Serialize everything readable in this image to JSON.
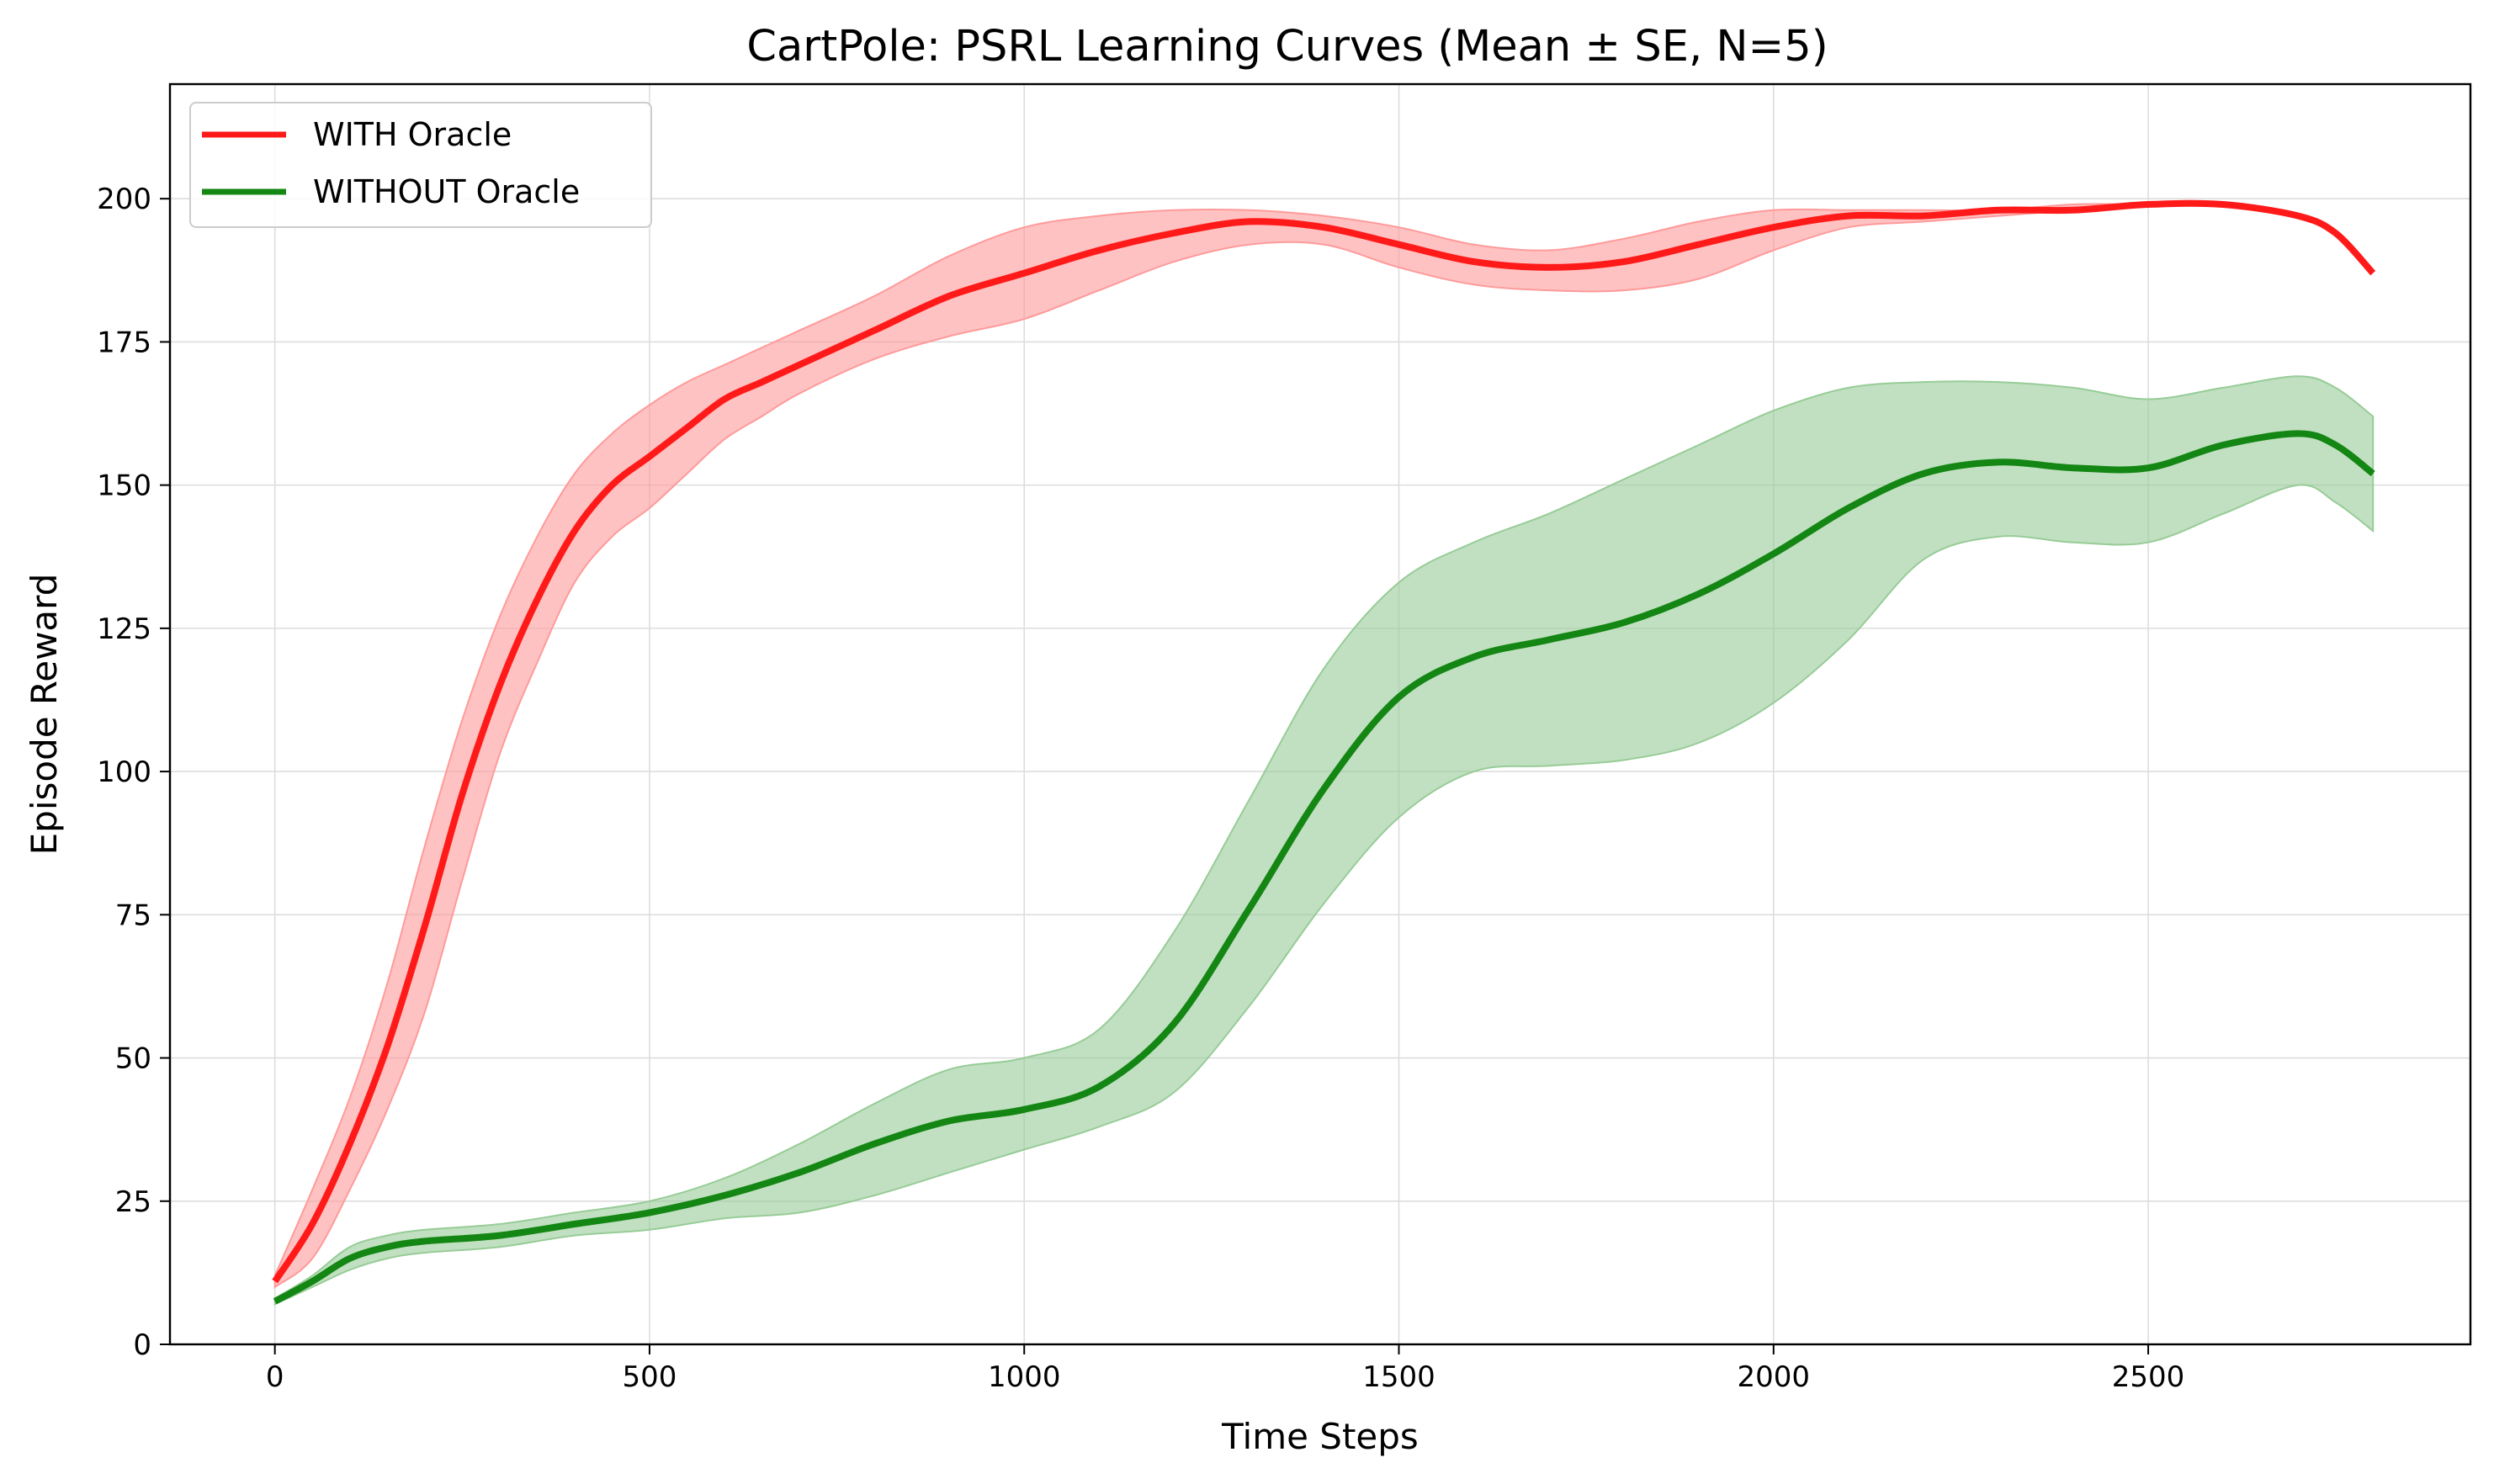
{
  "chart_data": {
    "type": "line",
    "title": "CartPole: PSRL Learning Curves (Mean ± SE, N=5)",
    "xlabel": "Time Steps",
    "ylabel": "Episode Reward",
    "xlim": [
      -140,
      2930
    ],
    "ylim": [
      0,
      220
    ],
    "xticks": [
      0,
      500,
      1000,
      1500,
      2000,
      2500
    ],
    "yticks": [
      0,
      25,
      50,
      75,
      100,
      125,
      150,
      175,
      200
    ],
    "grid": true,
    "legend_position": "top-left",
    "series": [
      {
        "name": "WITH Oracle",
        "color": "#ff1a1a",
        "band_color": "#ff9a9a",
        "x": [
          0,
          50,
          100,
          150,
          200,
          250,
          300,
          350,
          400,
          450,
          500,
          550,
          600,
          650,
          700,
          800,
          900,
          1000,
          1100,
          1200,
          1300,
          1400,
          1500,
          1600,
          1700,
          1800,
          1900,
          2000,
          2100,
          2200,
          2300,
          2400,
          2500,
          2600,
          2700,
          2750,
          2800
        ],
        "mean": [
          11,
          21,
          35,
          52,
          73,
          96,
          115,
          130,
          142,
          150,
          155,
          160,
          165,
          168,
          171,
          177,
          183,
          187,
          191,
          194,
          196,
          195,
          192,
          189,
          188,
          189,
          192,
          195,
          197,
          197,
          198,
          198,
          199,
          199,
          197,
          194,
          187
        ],
        "upper": [
          12,
          27,
          43,
          63,
          87,
          109,
          127,
          141,
          152,
          159,
          164,
          168,
          171,
          174,
          177,
          183,
          190,
          195,
          197,
          198,
          198,
          197,
          195,
          192,
          191,
          193,
          196,
          198,
          198,
          198,
          198,
          199,
          199,
          199,
          197,
          194,
          187
        ],
        "lower": [
          10,
          15,
          27,
          41,
          58,
          81,
          103,
          119,
          133,
          141,
          146,
          152,
          158,
          162,
          166,
          172,
          176,
          179,
          184,
          189,
          192,
          192,
          188,
          185,
          184,
          184,
          186,
          191,
          195,
          196,
          197,
          198,
          199,
          199,
          197,
          194,
          187
        ]
      },
      {
        "name": "WITHOUT Oracle",
        "color": "#138613",
        "band_color": "#97cc97",
        "x": [
          0,
          50,
          100,
          150,
          200,
          300,
          400,
          500,
          600,
          700,
          800,
          900,
          1000,
          1100,
          1200,
          1300,
          1400,
          1500,
          1600,
          1700,
          1800,
          1900,
          2000,
          2100,
          2200,
          2300,
          2400,
          2500,
          2600,
          2700,
          2750,
          2800
        ],
        "mean": [
          7.5,
          11,
          15,
          17,
          18,
          19,
          21,
          23,
          26,
          30,
          35,
          39,
          41,
          45,
          56,
          76,
          97,
          113,
          120,
          123,
          126,
          131,
          138,
          146,
          152,
          154,
          153,
          153,
          157,
          159,
          157,
          152
        ],
        "upper": [
          8,
          12,
          17,
          19,
          20,
          21,
          23,
          25,
          29,
          35,
          42,
          48,
          50,
          55,
          72,
          95,
          118,
          133,
          140,
          145,
          151,
          157,
          163,
          167,
          168,
          168,
          167,
          165,
          167,
          169,
          167,
          162
        ],
        "lower": [
          7,
          10,
          13,
          15,
          16,
          17,
          19,
          20,
          22,
          23,
          26,
          30,
          34,
          38,
          44,
          59,
          77,
          92,
          100,
          101,
          102,
          105,
          112,
          123,
          137,
          141,
          140,
          140,
          145,
          150,
          147,
          142
        ]
      }
    ]
  }
}
